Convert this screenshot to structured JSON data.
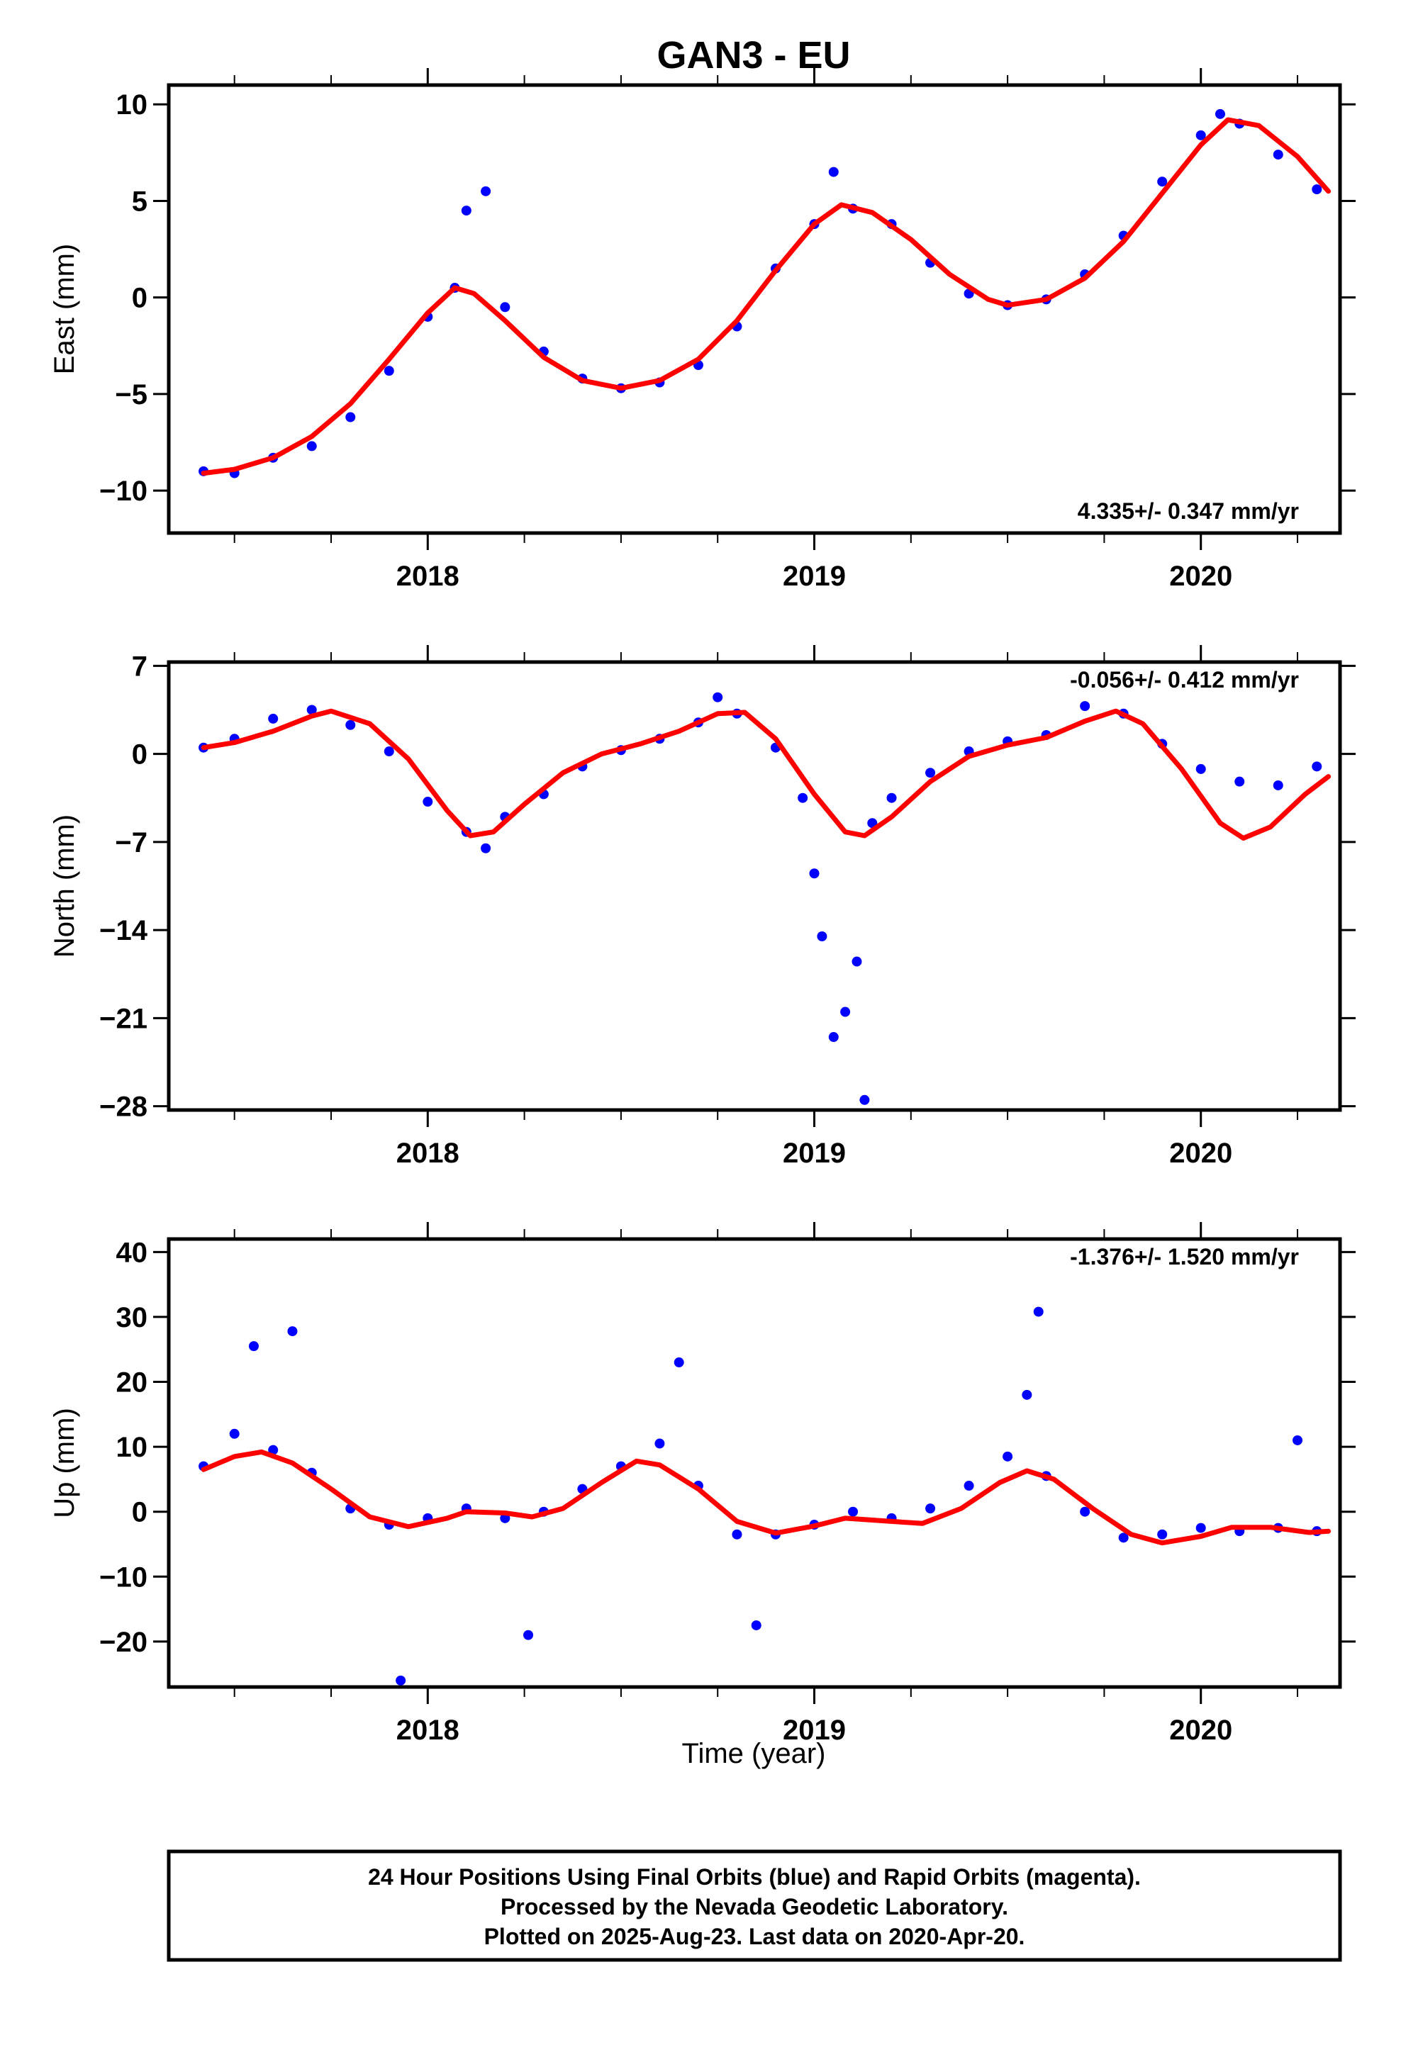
{
  "title": "GAN3 - EU",
  "xlabel": "Time (year)",
  "footer": {
    "lines": [
      "24 Hour Positions Using Final Orbits (blue) and Rapid Orbits (magenta).",
      "Processed by the Nevada Geodetic Laboratory.",
      "Plotted on 2025-Aug-23. Last data on 2020-Apr-20."
    ]
  },
  "colors": {
    "final_orbits": "#0000ff",
    "model_fit": "#ff0000",
    "frame": "#000000"
  },
  "chart_data": [
    {
      "type": "scatter",
      "ylabel": "East (mm)",
      "rate": "4.335+/- 0.347 mm/yr",
      "rate_position": "bottom-right",
      "xlim": [
        2017.33,
        2020.36
      ],
      "ylim": [
        -12.2,
        11.0
      ],
      "yticks": [
        10,
        5,
        0,
        -5,
        -10
      ],
      "xticks": [
        2018,
        2019,
        2020
      ],
      "grid": false,
      "series": [
        {
          "kind": "points",
          "data": [
            [
              2017.42,
              -9.0
            ],
            [
              2017.5,
              -9.1
            ],
            [
              2017.6,
              -8.3
            ],
            [
              2017.7,
              -7.7
            ],
            [
              2017.8,
              -6.2
            ],
            [
              2017.9,
              -3.8
            ],
            [
              2018.0,
              -1.0
            ],
            [
              2018.07,
              0.5
            ],
            [
              2018.1,
              4.5
            ],
            [
              2018.15,
              5.5
            ],
            [
              2018.2,
              -0.5
            ],
            [
              2018.3,
              -2.8
            ],
            [
              2018.4,
              -4.2
            ],
            [
              2018.5,
              -4.7
            ],
            [
              2018.6,
              -4.4
            ],
            [
              2018.7,
              -3.5
            ],
            [
              2018.8,
              -1.5
            ],
            [
              2018.9,
              1.5
            ],
            [
              2019.0,
              3.8
            ],
            [
              2019.05,
              6.5
            ],
            [
              2019.1,
              4.6
            ],
            [
              2019.2,
              3.8
            ],
            [
              2019.3,
              1.8
            ],
            [
              2019.4,
              0.2
            ],
            [
              2019.5,
              -0.4
            ],
            [
              2019.6,
              -0.1
            ],
            [
              2019.7,
              1.2
            ],
            [
              2019.8,
              3.2
            ],
            [
              2019.9,
              6.0
            ],
            [
              2020.0,
              8.4
            ],
            [
              2020.05,
              9.5
            ],
            [
              2020.1,
              9.0
            ],
            [
              2020.2,
              7.4
            ],
            [
              2020.3,
              5.6
            ]
          ]
        },
        {
          "kind": "fit",
          "data": [
            [
              2017.42,
              -9.1
            ],
            [
              2017.5,
              -8.9
            ],
            [
              2017.6,
              -8.3
            ],
            [
              2017.7,
              -7.2
            ],
            [
              2017.8,
              -5.5
            ],
            [
              2017.9,
              -3.2
            ],
            [
              2018.0,
              -0.8
            ],
            [
              2018.07,
              0.5
            ],
            [
              2018.12,
              0.2
            ],
            [
              2018.2,
              -1.2
            ],
            [
              2018.3,
              -3.1
            ],
            [
              2018.4,
              -4.3
            ],
            [
              2018.5,
              -4.7
            ],
            [
              2018.6,
              -4.3
            ],
            [
              2018.7,
              -3.2
            ],
            [
              2018.8,
              -1.2
            ],
            [
              2018.9,
              1.4
            ],
            [
              2019.0,
              3.8
            ],
            [
              2019.07,
              4.8
            ],
            [
              2019.15,
              4.4
            ],
            [
              2019.25,
              3.0
            ],
            [
              2019.35,
              1.2
            ],
            [
              2019.45,
              -0.1
            ],
            [
              2019.5,
              -0.4
            ],
            [
              2019.6,
              -0.1
            ],
            [
              2019.7,
              1.0
            ],
            [
              2019.8,
              2.9
            ],
            [
              2019.9,
              5.4
            ],
            [
              2020.0,
              7.9
            ],
            [
              2020.07,
              9.2
            ],
            [
              2020.15,
              8.9
            ],
            [
              2020.25,
              7.3
            ],
            [
              2020.33,
              5.5
            ]
          ]
        }
      ]
    },
    {
      "type": "scatter",
      "ylabel": "North (mm)",
      "rate": "-0.056+/- 0.412 mm/yr",
      "rate_position": "top-right",
      "xlim": [
        2017.33,
        2020.36
      ],
      "ylim": [
        -28.3,
        7.3
      ],
      "yticks": [
        7,
        0,
        -7,
        -14,
        -21,
        -28
      ],
      "xticks": [
        2018,
        2019,
        2020
      ],
      "grid": false,
      "series": [
        {
          "kind": "points",
          "data": [
            [
              2017.42,
              0.5
            ],
            [
              2017.5,
              1.2
            ],
            [
              2017.6,
              2.8
            ],
            [
              2017.7,
              3.5
            ],
            [
              2017.8,
              2.3
            ],
            [
              2017.9,
              0.2
            ],
            [
              2018.0,
              -3.8
            ],
            [
              2018.1,
              -6.2
            ],
            [
              2018.15,
              -7.5
            ],
            [
              2018.2,
              -5.0
            ],
            [
              2018.3,
              -3.2
            ],
            [
              2018.4,
              -1.0
            ],
            [
              2018.5,
              0.3
            ],
            [
              2018.6,
              1.2
            ],
            [
              2018.7,
              2.5
            ],
            [
              2018.75,
              4.5
            ],
            [
              2018.8,
              3.2
            ],
            [
              2018.9,
              0.5
            ],
            [
              2018.97,
              -3.5
            ],
            [
              2019.0,
              -9.5
            ],
            [
              2019.02,
              -14.5
            ],
            [
              2019.05,
              -22.5
            ],
            [
              2019.08,
              -20.5
            ],
            [
              2019.11,
              -16.5
            ],
            [
              2019.13,
              -27.5
            ],
            [
              2019.15,
              -5.5
            ],
            [
              2019.2,
              -3.5
            ],
            [
              2019.3,
              -1.5
            ],
            [
              2019.4,
              0.2
            ],
            [
              2019.5,
              1.0
            ],
            [
              2019.6,
              1.5
            ],
            [
              2019.7,
              3.8
            ],
            [
              2019.8,
              3.2
            ],
            [
              2019.9,
              0.8
            ],
            [
              2020.0,
              -1.2
            ],
            [
              2020.1,
              -2.2
            ],
            [
              2020.2,
              -2.5
            ],
            [
              2020.3,
              -1.0
            ]
          ]
        },
        {
          "kind": "fit",
          "data": [
            [
              2017.42,
              0.5
            ],
            [
              2017.5,
              0.9
            ],
            [
              2017.6,
              1.8
            ],
            [
              2017.7,
              3.0
            ],
            [
              2017.75,
              3.4
            ],
            [
              2017.85,
              2.4
            ],
            [
              2017.95,
              -0.4
            ],
            [
              2018.05,
              -4.5
            ],
            [
              2018.11,
              -6.5
            ],
            [
              2018.17,
              -6.2
            ],
            [
              2018.25,
              -4.0
            ],
            [
              2018.35,
              -1.5
            ],
            [
              2018.45,
              0.0
            ],
            [
              2018.55,
              0.8
            ],
            [
              2018.65,
              1.8
            ],
            [
              2018.75,
              3.2
            ],
            [
              2018.82,
              3.3
            ],
            [
              2018.9,
              1.2
            ],
            [
              2019.0,
              -3.2
            ],
            [
              2019.08,
              -6.2
            ],
            [
              2019.13,
              -6.5
            ],
            [
              2019.2,
              -5.0
            ],
            [
              2019.3,
              -2.2
            ],
            [
              2019.4,
              -0.2
            ],
            [
              2019.5,
              0.7
            ],
            [
              2019.6,
              1.3
            ],
            [
              2019.7,
              2.6
            ],
            [
              2019.78,
              3.4
            ],
            [
              2019.85,
              2.4
            ],
            [
              2019.95,
              -1.2
            ],
            [
              2020.05,
              -5.5
            ],
            [
              2020.11,
              -6.7
            ],
            [
              2020.18,
              -5.8
            ],
            [
              2020.27,
              -3.2
            ],
            [
              2020.33,
              -1.8
            ]
          ]
        }
      ]
    },
    {
      "type": "scatter",
      "ylabel": "Up (mm)",
      "rate": "-1.376+/- 1.520 mm/yr",
      "rate_position": "top-right",
      "xlim": [
        2017.33,
        2020.36
      ],
      "ylim": [
        -27.0,
        42.0
      ],
      "yticks": [
        40,
        30,
        20,
        10,
        0,
        -10,
        -20
      ],
      "xticks": [
        2018,
        2019,
        2020
      ],
      "grid": false,
      "series": [
        {
          "kind": "points",
          "data": [
            [
              2017.42,
              7.0
            ],
            [
              2017.5,
              12.0
            ],
            [
              2017.55,
              25.5
            ],
            [
              2017.6,
              9.5
            ],
            [
              2017.65,
              27.8
            ],
            [
              2017.7,
              6.0
            ],
            [
              2017.8,
              0.5
            ],
            [
              2017.9,
              -2.0
            ],
            [
              2017.93,
              -26.0
            ],
            [
              2018.0,
              -1.0
            ],
            [
              2018.1,
              0.5
            ],
            [
              2018.2,
              -1.0
            ],
            [
              2018.26,
              -19.0
            ],
            [
              2018.3,
              0.0
            ],
            [
              2018.4,
              3.5
            ],
            [
              2018.5,
              7.0
            ],
            [
              2018.6,
              10.5
            ],
            [
              2018.65,
              23.0
            ],
            [
              2018.7,
              4.0
            ],
            [
              2018.8,
              -3.5
            ],
            [
              2018.85,
              -17.5
            ],
            [
              2018.9,
              -3.5
            ],
            [
              2019.0,
              -2.0
            ],
            [
              2019.1,
              0.0
            ],
            [
              2019.2,
              -1.0
            ],
            [
              2019.3,
              0.5
            ],
            [
              2019.4,
              4.0
            ],
            [
              2019.5,
              8.5
            ],
            [
              2019.55,
              18.0
            ],
            [
              2019.58,
              30.8
            ],
            [
              2019.6,
              5.5
            ],
            [
              2019.7,
              0.0
            ],
            [
              2019.8,
              -4.0
            ],
            [
              2019.9,
              -3.5
            ],
            [
              2020.0,
              -2.5
            ],
            [
              2020.1,
              -3.0
            ],
            [
              2020.2,
              -2.5
            ],
            [
              2020.25,
              11.0
            ],
            [
              2020.3,
              -3.0
            ]
          ]
        },
        {
          "kind": "fit",
          "data": [
            [
              2017.42,
              6.5
            ],
            [
              2017.5,
              8.5
            ],
            [
              2017.57,
              9.2
            ],
            [
              2017.65,
              7.5
            ],
            [
              2017.75,
              3.5
            ],
            [
              2017.85,
              -0.8
            ],
            [
              2017.95,
              -2.3
            ],
            [
              2018.05,
              -1.0
            ],
            [
              2018.1,
              0.0
            ],
            [
              2018.2,
              -0.2
            ],
            [
              2018.27,
              -0.8
            ],
            [
              2018.35,
              0.5
            ],
            [
              2018.45,
              4.5
            ],
            [
              2018.54,
              7.8
            ],
            [
              2018.6,
              7.2
            ],
            [
              2018.7,
              3.5
            ],
            [
              2018.8,
              -1.5
            ],
            [
              2018.9,
              -3.3
            ],
            [
              2019.0,
              -2.2
            ],
            [
              2019.08,
              -1.0
            ],
            [
              2019.2,
              -1.5
            ],
            [
              2019.28,
              -1.8
            ],
            [
              2019.38,
              0.5
            ],
            [
              2019.48,
              4.5
            ],
            [
              2019.55,
              6.3
            ],
            [
              2019.62,
              5.0
            ],
            [
              2019.72,
              0.5
            ],
            [
              2019.82,
              -3.5
            ],
            [
              2019.9,
              -4.8
            ],
            [
              2020.0,
              -3.8
            ],
            [
              2020.08,
              -2.4
            ],
            [
              2020.18,
              -2.4
            ],
            [
              2020.28,
              -3.2
            ],
            [
              2020.33,
              -3.0
            ]
          ]
        }
      ]
    }
  ]
}
